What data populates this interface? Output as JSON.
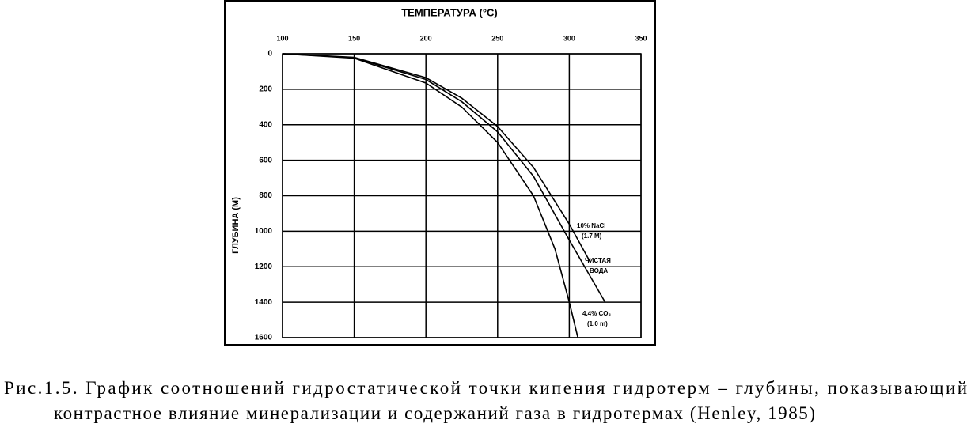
{
  "chart_data": {
    "type": "line",
    "xlabel": "ТЕМПЕРАТУРА (°C)",
    "ylabel": "ГЛУБИНА (M)",
    "xlim": [
      100,
      350
    ],
    "xticks": [
      100,
      150,
      200,
      250,
      300,
      350
    ],
    "ylim": [
      1600,
      0
    ],
    "yticks": [
      0,
      200,
      400,
      600,
      800,
      1000,
      1200,
      1400,
      1600
    ],
    "grid": true,
    "series": [
      {
        "label_lines": [
          "10% NaCl",
          "(1.7 M)"
        ],
        "color": "#000000",
        "x": [
          100,
          150,
          200,
          225,
          250,
          275,
          300,
          315
        ],
        "values": [
          0,
          20,
          135,
          250,
          410,
          640,
          960,
          1180
        ]
      },
      {
        "label_lines": [
          "ЧИСТАЯ",
          "ВОДА"
        ],
        "color": "#000000",
        "x": [
          100,
          150,
          200,
          225,
          250,
          275,
          300,
          315,
          325
        ],
        "values": [
          0,
          22,
          145,
          270,
          440,
          690,
          1050,
          1260,
          1400
        ]
      },
      {
        "label_lines": [
          "4.4% CO₂",
          "(1.0 m)"
        ],
        "color": "#000000",
        "x": [
          100,
          150,
          200,
          225,
          250,
          275,
          290,
          300,
          306
        ],
        "values": [
          0,
          25,
          165,
          300,
          500,
          800,
          1100,
          1400,
          1600
        ]
      }
    ]
  },
  "caption": [
    "Рис.1.5. График соотношений гидростатической точки кипения гидротерм – глубины,  показывающий",
    "контрастное влияние минерализации и содержаний газа в гидротермах (Henley, 1985)"
  ]
}
